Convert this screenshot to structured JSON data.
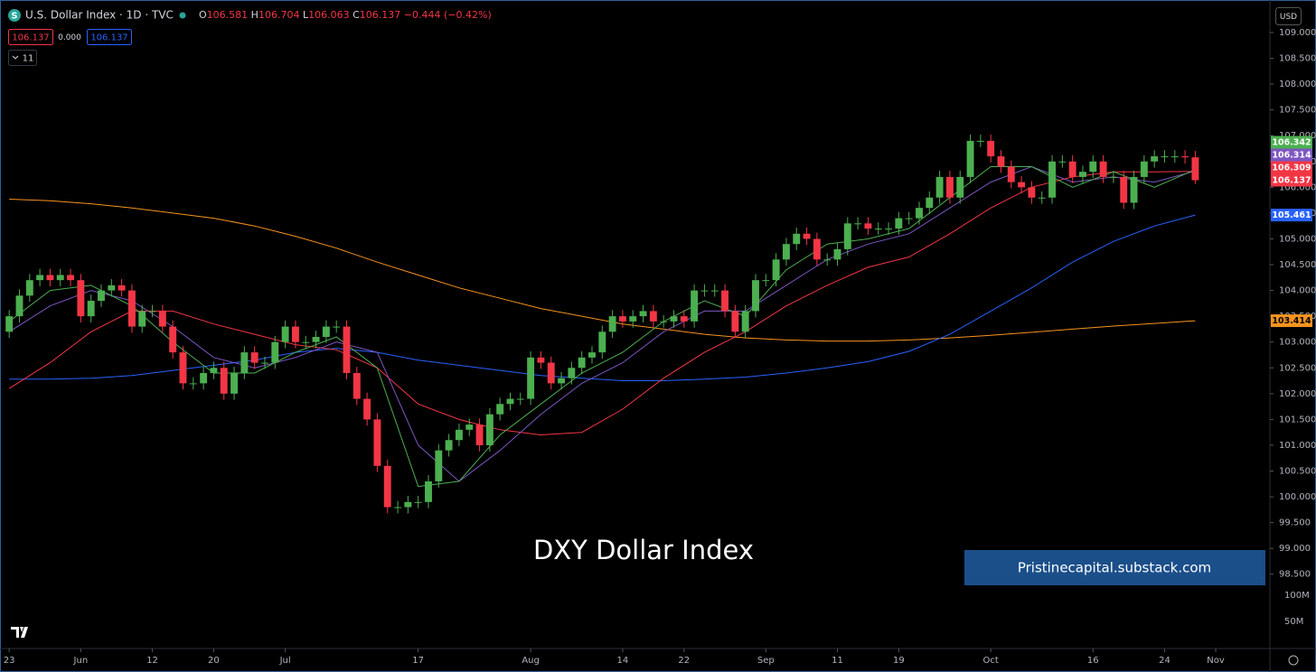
{
  "chart_data": {
    "type": "candlestick",
    "title": "U.S. Dollar Index · 1D · TVC",
    "ohlc_prefixes": [
      "O",
      "H",
      "L",
      "C"
    ],
    "change_label": "−0.444 (−0.42%)",
    "quote_boxes": [
      "106.137",
      "0.000",
      "106.137"
    ],
    "indicator_count": "11",
    "currency": "USD",
    "watermark": "DXY Dollar Index",
    "source": "Pristinecapital.substack.com",
    "volume_labels": [
      "100M",
      "50M"
    ],
    "up_color": "#4caf50",
    "down_color": "#f23645",
    "xlim": [
      -0.9,
      123.3
    ],
    "ylim": [
      97.06,
      109.63
    ],
    "xticks": [
      {
        "value": 0,
        "label": "23"
      },
      {
        "value": 7,
        "label": "Jun"
      },
      {
        "value": 14,
        "label": "12"
      },
      {
        "value": 20,
        "label": "20"
      },
      {
        "value": 27,
        "label": "Jul"
      },
      {
        "value": 40,
        "label": "17"
      },
      {
        "value": 51,
        "label": "Aug"
      },
      {
        "value": 60,
        "label": "14"
      },
      {
        "value": 66,
        "label": "22"
      },
      {
        "value": 74,
        "label": "Sep"
      },
      {
        "value": 81,
        "label": "11"
      },
      {
        "value": 87,
        "label": "19"
      },
      {
        "value": 96,
        "label": "Oct"
      },
      {
        "value": 106,
        "label": "16"
      },
      {
        "value": 113,
        "label": "24"
      },
      {
        "value": 118,
        "label": "Nov"
      }
    ],
    "yticks": [
      {
        "value": 98.5,
        "label": "98.500"
      },
      {
        "value": 99,
        "label": "99.000"
      },
      {
        "value": 99.5,
        "label": "99.500"
      },
      {
        "value": 100,
        "label": "100.000"
      },
      {
        "value": 100.5,
        "label": "100.500"
      },
      {
        "value": 101,
        "label": "101.000"
      },
      {
        "value": 101.5,
        "label": "101.500"
      },
      {
        "value": 102,
        "label": "102.000"
      },
      {
        "value": 102.5,
        "label": "102.500"
      },
      {
        "value": 103,
        "label": "103.000"
      },
      {
        "value": 103.5,
        "label": "103.500"
      },
      {
        "value": 104,
        "label": "104.000"
      },
      {
        "value": 104.5,
        "label": "104.500"
      },
      {
        "value": 105,
        "label": "105.000"
      },
      {
        "value": 105.5,
        "label": "105.500"
      },
      {
        "value": 106,
        "label": "106.000"
      },
      {
        "value": 106.5,
        "label": "106.500"
      },
      {
        "value": 107,
        "label": "107.000"
      },
      {
        "value": 107.5,
        "label": "107.500"
      },
      {
        "value": 108,
        "label": "108.000"
      },
      {
        "value": 108.5,
        "label": "108.500"
      },
      {
        "value": 109,
        "label": "109.000"
      }
    ],
    "candles": {
      "open": [
        103.2,
        103.5,
        103.9,
        104.2,
        104.3,
        104.2,
        104.3,
        104.2,
        103.5,
        103.8,
        104.0,
        104.1,
        104.0,
        103.3,
        103.6,
        103.6,
        103.3,
        102.8,
        102.2,
        102.2,
        102.4,
        102.5,
        102.0,
        102.4,
        102.8,
        102.6,
        102.6,
        103.0,
        103.3,
        103.0,
        103.0,
        103.1,
        103.3,
        103.3,
        102.4,
        101.9,
        101.5,
        100.6,
        99.8,
        99.8,
        99.9,
        99.9,
        100.3,
        100.9,
        101.1,
        101.3,
        101.4,
        101.0,
        101.6,
        101.8,
        101.9,
        101.9,
        102.7,
        102.6,
        102.2,
        102.3,
        102.5,
        102.7,
        102.8,
        103.2,
        103.5,
        103.4,
        103.5,
        103.6,
        103.4,
        103.4,
        103.5,
        103.4,
        104.0,
        104.0,
        104.0,
        103.6,
        103.2,
        103.6,
        104.2,
        104.2,
        104.6,
        104.9,
        105.1,
        105.0,
        104.6,
        104.6,
        104.8,
        105.3,
        105.3,
        105.2,
        105.2,
        105.2,
        105.4,
        105.4,
        105.6,
        105.8,
        106.2,
        105.8,
        106.2,
        106.9,
        106.9,
        106.6,
        106.4,
        106.1,
        106.0,
        105.8,
        105.8,
        106.5,
        106.5,
        106.2,
        106.3,
        106.5,
        106.2,
        106.2,
        105.7,
        106.2,
        106.5,
        106.6,
        106.6,
        106.6,
        106.581
      ],
      "high": [
        103.62,
        104.02,
        104.32,
        104.42,
        104.42,
        104.42,
        104.42,
        104.32,
        103.92,
        104.12,
        104.22,
        104.22,
        104.12,
        103.72,
        103.72,
        103.72,
        103.42,
        102.92,
        102.32,
        102.52,
        102.62,
        102.62,
        102.52,
        102.92,
        102.92,
        102.72,
        103.12,
        103.42,
        103.42,
        103.12,
        103.22,
        103.42,
        103.42,
        103.42,
        102.52,
        102.02,
        101.62,
        100.72,
        99.92,
        100.02,
        100.02,
        100.42,
        101.02,
        101.22,
        101.42,
        101.52,
        101.52,
        101.72,
        101.92,
        102.02,
        102.02,
        102.82,
        102.82,
        102.72,
        102.42,
        102.62,
        102.82,
        102.92,
        103.32,
        103.62,
        103.62,
        103.62,
        103.72,
        103.72,
        103.52,
        103.62,
        103.62,
        104.12,
        104.12,
        104.12,
        104.12,
        103.72,
        103.72,
        104.32,
        104.32,
        104.72,
        105.02,
        105.22,
        105.22,
        105.12,
        104.72,
        104.92,
        105.42,
        105.42,
        105.42,
        105.32,
        105.32,
        105.52,
        105.52,
        105.72,
        105.92,
        106.32,
        106.32,
        106.32,
        107.02,
        107.02,
        107.02,
        106.72,
        106.52,
        106.22,
        106.12,
        105.92,
        106.62,
        106.62,
        106.62,
        106.42,
        106.62,
        106.62,
        106.32,
        106.32,
        106.32,
        106.62,
        106.72,
        106.72,
        106.72,
        106.72,
        106.704
      ],
      "low": [
        103.08,
        103.38,
        103.78,
        104.08,
        104.08,
        104.08,
        104.08,
        103.38,
        103.38,
        103.68,
        103.88,
        103.88,
        103.18,
        103.18,
        103.48,
        103.18,
        102.68,
        102.08,
        102.08,
        102.08,
        102.28,
        101.88,
        101.88,
        102.28,
        102.48,
        102.48,
        102.48,
        102.88,
        102.88,
        102.88,
        102.88,
        102.98,
        103.18,
        102.28,
        101.78,
        101.38,
        100.48,
        99.68,
        99.68,
        99.68,
        99.78,
        99.78,
        100.18,
        100.78,
        100.98,
        101.18,
        100.88,
        100.88,
        101.48,
        101.68,
        101.78,
        101.78,
        102.48,
        102.08,
        102.08,
        102.18,
        102.38,
        102.58,
        102.68,
        103.08,
        103.28,
        103.28,
        103.38,
        103.28,
        103.28,
        103.28,
        103.28,
        103.28,
        103.88,
        103.88,
        103.48,
        103.08,
        103.08,
        103.48,
        104.08,
        104.08,
        104.48,
        104.78,
        104.88,
        104.48,
        104.48,
        104.48,
        104.68,
        105.18,
        105.08,
        105.08,
        105.08,
        105.08,
        105.28,
        105.28,
        105.48,
        105.68,
        105.68,
        105.68,
        106.08,
        106.78,
        106.48,
        106.28,
        105.98,
        105.88,
        105.68,
        105.68,
        105.68,
        106.38,
        106.08,
        106.08,
        106.18,
        106.08,
        106.08,
        105.58,
        105.58,
        106.08,
        106.38,
        106.48,
        106.48,
        106.46,
        106.063
      ],
      "close": [
        103.5,
        103.9,
        104.2,
        104.3,
        104.2,
        104.3,
        104.2,
        103.5,
        103.8,
        104.0,
        104.1,
        104.0,
        103.3,
        103.6,
        103.6,
        103.3,
        102.8,
        102.2,
        102.2,
        102.4,
        102.5,
        102.0,
        102.4,
        102.8,
        102.6,
        102.6,
        103.0,
        103.3,
        103.0,
        103.0,
        103.1,
        103.3,
        103.3,
        102.4,
        101.9,
        101.5,
        100.6,
        99.8,
        99.8,
        99.9,
        99.9,
        100.3,
        100.9,
        101.1,
        101.3,
        101.4,
        101.0,
        101.6,
        101.8,
        101.9,
        101.9,
        102.7,
        102.6,
        102.2,
        102.3,
        102.5,
        102.7,
        102.8,
        103.2,
        103.5,
        103.4,
        103.5,
        103.6,
        103.4,
        103.4,
        103.5,
        103.4,
        104.0,
        104.0,
        104.0,
        103.6,
        103.2,
        103.6,
        104.2,
        104.2,
        104.6,
        104.9,
        105.1,
        105.0,
        104.6,
        104.6,
        104.8,
        105.3,
        105.3,
        105.2,
        105.2,
        105.2,
        105.4,
        105.4,
        105.6,
        105.8,
        106.2,
        105.8,
        106.2,
        106.9,
        106.9,
        106.6,
        106.4,
        106.1,
        106.0,
        105.8,
        105.8,
        106.5,
        106.5,
        106.2,
        106.3,
        106.5,
        106.2,
        106.2,
        105.7,
        106.2,
        106.5,
        106.6,
        106.6,
        106.6,
        106.58,
        106.137
      ]
    },
    "ma_x": [
      0,
      4,
      8,
      12,
      16,
      20,
      24,
      28,
      32,
      36,
      40,
      44,
      48,
      52,
      56,
      60,
      64,
      68,
      72,
      76,
      80,
      84,
      88,
      92,
      96,
      100,
      104,
      108,
      112,
      116
    ],
    "moving_averages": [
      {
        "color": "#f7931e",
        "values": [
          105.77,
          105.74,
          105.68,
          105.6,
          105.5,
          105.4,
          105.25,
          105.05,
          104.82,
          104.55,
          104.3,
          104.05,
          103.85,
          103.65,
          103.5,
          103.35,
          103.25,
          103.15,
          103.08,
          103.04,
          103.02,
          103.02,
          103.04,
          103.08,
          103.13,
          103.19,
          103.25,
          103.31,
          103.36,
          103.414
        ]
      },
      {
        "color": "#2962ff",
        "values": [
          102.28,
          102.28,
          102.3,
          102.35,
          102.45,
          102.55,
          102.65,
          102.8,
          102.88,
          102.8,
          102.65,
          102.55,
          102.45,
          102.35,
          102.3,
          102.25,
          102.25,
          102.28,
          102.32,
          102.4,
          102.5,
          102.62,
          102.82,
          103.15,
          103.6,
          104.05,
          104.55,
          104.95,
          105.25,
          105.461
        ]
      },
      {
        "color": "#f23645",
        "values": [
          102.1,
          102.6,
          103.2,
          103.6,
          103.6,
          103.35,
          103.15,
          102.95,
          102.85,
          102.5,
          101.8,
          101.5,
          101.3,
          101.2,
          101.25,
          101.7,
          102.3,
          102.8,
          103.2,
          103.7,
          104.1,
          104.45,
          104.65,
          105.1,
          105.6,
          106.0,
          106.2,
          106.3,
          106.3,
          106.309
        ]
      },
      {
        "color": "#7e57c2",
        "values": [
          103.2,
          103.7,
          104.0,
          103.8,
          103.3,
          102.7,
          102.5,
          102.7,
          103.0,
          102.8,
          101.0,
          100.3,
          100.9,
          101.6,
          102.2,
          102.6,
          103.2,
          103.6,
          103.6,
          104.1,
          104.6,
          104.9,
          105.1,
          105.6,
          106.1,
          106.4,
          106.1,
          106.2,
          106.1,
          106.314
        ]
      },
      {
        "color": "#4caf50",
        "values": [
          103.4,
          104.0,
          104.1,
          103.7,
          103.0,
          102.4,
          102.4,
          102.8,
          103.1,
          102.5,
          100.2,
          100.3,
          101.2,
          101.8,
          102.4,
          102.8,
          103.4,
          103.8,
          103.5,
          104.4,
          104.9,
          105.0,
          105.2,
          105.8,
          106.4,
          106.4,
          106.0,
          106.3,
          106.0,
          106.342
        ]
      }
    ],
    "price_tags": [
      {
        "value": 106.342,
        "color": "#4caf50"
      },
      {
        "value": 106.314,
        "color": "#7e57c2"
      },
      {
        "value": 106.309,
        "color": "#f23645"
      },
      {
        "value": 106.137,
        "color": "#f23645"
      },
      {
        "value": 105.461,
        "color": "#2962ff"
      },
      {
        "value": 103.414,
        "color": "#f7931e"
      }
    ]
  }
}
